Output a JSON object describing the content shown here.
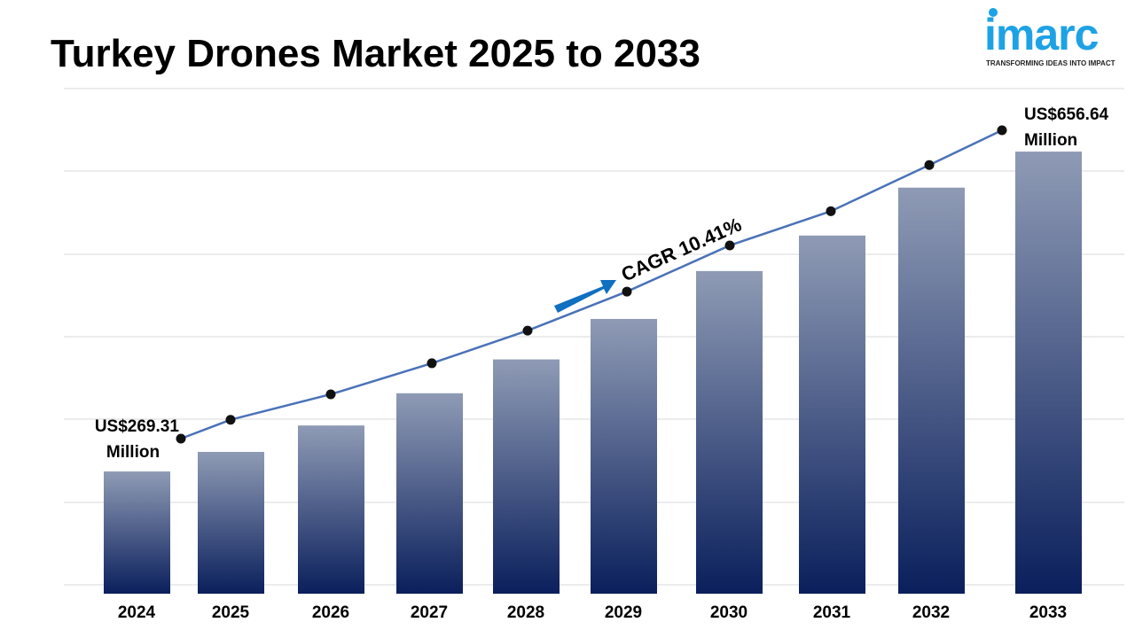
{
  "title": "Turkey Drones Market 2025 to 2033",
  "logo": {
    "text": "imarc",
    "tagline": "TRANSFORMING IDEAS INTO IMPACT"
  },
  "chart_data": {
    "type": "bar",
    "title": "Turkey Drones Market 2025 to 2033",
    "categories": [
      "2024",
      "2025",
      "2026",
      "2027",
      "2028",
      "2029",
      "2030",
      "2031",
      "2032",
      "2033"
    ],
    "values": [
      269.31,
      293,
      325,
      364,
      405,
      454,
      512,
      555,
      613,
      656.64
    ],
    "unit": "US$ Million",
    "overlay_line": true,
    "grid": true,
    "annotations": {
      "start_label": [
        "US$269.31",
        "Million"
      ],
      "end_label": [
        "US$656.64",
        "Million"
      ],
      "cagr": "CAGR 10.41%"
    },
    "colors": {
      "bar_top": "#8f9bb5",
      "bar_bottom": "#0a1f5c",
      "line": "#4a72b8",
      "arrow": "#0f6fc0"
    }
  }
}
